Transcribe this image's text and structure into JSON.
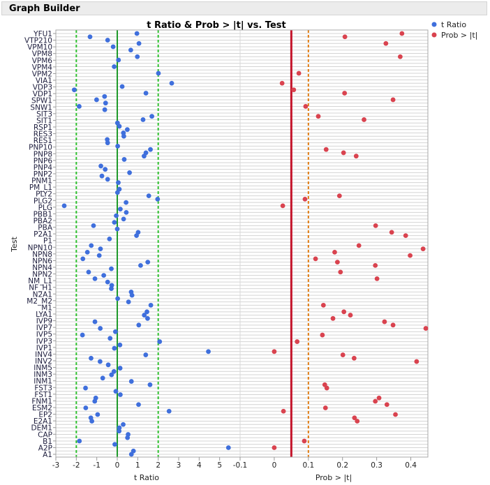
{
  "panel": {
    "title": "Graph Builder"
  },
  "colors": {
    "t_ratio": "#3f6fdc",
    "prob": "#d9434f",
    "ref_zero": "#1f9a2a",
    "ref_two": "#2ec02e",
    "ref_005": "#c4152b",
    "ref_010": "#e07b10"
  },
  "chart_data": {
    "type": "scatter",
    "title": "t Ratio & Prob > |t| vs. Test",
    "ylabel": "Test",
    "y_tick_labels": [
      "YFU1",
      "VTP210",
      "VPM10",
      "VPM8",
      "VPM6",
      "VPM4",
      "VPM2",
      "VIA1",
      "VDP3",
      "VDP1",
      "SPW1",
      "SNW1",
      "SIT3",
      "SIT1",
      "RSP1",
      "RES3",
      "RES1",
      "PNP10",
      "PNP8",
      "PNP6",
      "PNP4",
      "PNP2",
      "PNM1",
      "PM_L1",
      "PLY2",
      "PLG2",
      "PLG",
      "PBB1",
      "PBA2",
      "PBA",
      "P2A1",
      "P1",
      "NPN10",
      "NPN8",
      "NPN6",
      "NPN4",
      "NPN2",
      "NM_L1",
      "NF_H1",
      "N2A1",
      "M2_M2",
      "M1",
      "LYA1",
      "IVP9",
      "IVP7",
      "IVP5",
      "IVP3",
      "IVP1",
      "INV4",
      "INV2",
      "INM5",
      "INM3",
      "INM1",
      "FST3",
      "FST1",
      "FNM1",
      "ESM2",
      "EP2",
      "E2A1",
      "DEM1",
      "CAP",
      "B1",
      "A2P",
      "A1"
    ],
    "grid": true,
    "legend": {
      "placement": "top-right",
      "entries": [
        "t Ratio",
        "Prob > |t|"
      ]
    },
    "panels": [
      {
        "xlabel": "t Ratio",
        "xlim": [
          -3,
          6
        ],
        "ticks": [
          "-3",
          "-2",
          "-1",
          "0",
          "1",
          "2",
          "3",
          "4",
          "5"
        ],
        "tick_values": [
          -3,
          -2,
          -1,
          0,
          1,
          2,
          3,
          4,
          5
        ],
        "reference_lines": [
          {
            "value": 0,
            "style": "solid"
          },
          {
            "value": -2,
            "style": "dashed"
          },
          {
            "value": 2,
            "style": "dashed"
          }
        ]
      },
      {
        "xlabel": "Prob > |t|",
        "xlim": [
          -0.1,
          0.45
        ],
        "ticks": [
          "-0.1",
          "0",
          "0.1",
          "0.2",
          "0.3",
          "0.4"
        ],
        "tick_values": [
          -0.1,
          0,
          0.1,
          0.2,
          0.3,
          0.4
        ],
        "reference_lines": [
          {
            "value": 0.05,
            "style": "solid"
          },
          {
            "value": 0.1,
            "style": "dashed"
          }
        ]
      }
    ],
    "series": [
      {
        "name": "t Ratio",
        "values": [
          0.96,
          -1.33,
          -0.47,
          1.06,
          -0.2,
          0.66,
          null,
          0.98,
          0.06,
          null,
          -0.15,
          null,
          2.01,
          null,
          null,
          2.66,
          0.24,
          -2.1,
          1.4,
          -0.62,
          -1.01,
          -0.57,
          -1.86,
          -0.61,
          null,
          1.69,
          1.26,
          0.01,
          0.1,
          0.49,
          0.3,
          0.32,
          -0.49,
          -0.47,
          0.02,
          1.62,
          1.4,
          1.31,
          0.34,
          null,
          -0.8,
          -0.59,
          0.6,
          -0.75,
          -0.47,
          0.05,
          null,
          0.1,
          0.01,
          1.54,
          1.97,
          0.43,
          -2.59,
          0.15,
          0.44,
          -0.05,
          0.31,
          -0.14,
          -1.16,
          0.0,
          1.02,
          0.94,
          -0.38,
          null,
          -1.27,
          -0.82,
          -1.46,
          -0.88,
          -1.68,
          1.49,
          1.14,
          -0.29,
          -1.4,
          -0.66,
          -1.09,
          -0.47,
          -0.27,
          -0.29,
          0.68,
          0.72,
          0.02,
          0.55,
          1.64,
          null,
          1.45,
          1.32,
          1.48,
          -1.09,
          1.05,
          -0.83,
          -0.09,
          -1.7,
          -0.35,
          2.07,
          0.13,
          -0.14,
          4.45,
          1.39,
          -1.28,
          -0.84,
          -0.44,
          0.14,
          -0.16,
          -0.28,
          -0.71,
          0.69,
          1.6,
          -1.55,
          -0.07,
          0.15,
          -1.05,
          -1.1,
          1.04,
          -1.54,
          2.53,
          -0.96,
          -1.29,
          -1.24,
          0.29,
          0.1,
          0.09,
          0.53,
          0.5,
          -1.85,
          -0.12,
          5.43,
          0.79,
          0.69
        ]
      },
      {
        "name": "Prob > |t|",
        "values": [
          0.374,
          0.207,
          null,
          0.327,
          null,
          null,
          null,
          0.369,
          null,
          null,
          null,
          null,
          0.072,
          null,
          null,
          0.023,
          null,
          0.057,
          0.206,
          null,
          0.348,
          null,
          0.092,
          null,
          null,
          0.129,
          0.263,
          null,
          null,
          null,
          null,
          null,
          null,
          null,
          null,
          0.152,
          0.203,
          0.24,
          null,
          null,
          null,
          null,
          null,
          null,
          null,
          null,
          null,
          null,
          null,
          0.191,
          0.09,
          null,
          0.025,
          null,
          null,
          null,
          null,
          null,
          0.297,
          null,
          0.344,
          0.385,
          null,
          null,
          0.248,
          0.436,
          0.177,
          0.398,
          0.121,
          0.185,
          0.296,
          null,
          0.194,
          null,
          0.301,
          null,
          null,
          null,
          null,
          null,
          null,
          null,
          0.144,
          null,
          0.204,
          0.223,
          0.172,
          0.323,
          0.348,
          0.444,
          null,
          0.141,
          null,
          0.067,
          null,
          null,
          0.0,
          0.201,
          0.234,
          0.417,
          null,
          null,
          null,
          null,
          null,
          null,
          0.148,
          0.154,
          null,
          null,
          0.307,
          0.296,
          0.33,
          0.15,
          0.027,
          0.355,
          0.235,
          0.243,
          null,
          null,
          null,
          null,
          null,
          0.088,
          null,
          0.0,
          null,
          null
        ]
      }
    ]
  }
}
